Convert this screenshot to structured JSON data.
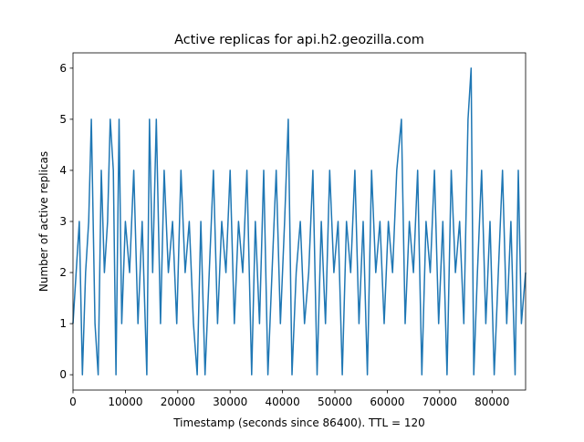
{
  "chart_data": {
    "type": "line",
    "title": "Active replicas for api.h2.geozilla.com",
    "xlabel": "Timestamp (seconds since 86400). TTL = 120",
    "ylabel": "Number of active replicas",
    "xlim": [
      0,
      86400
    ],
    "ylim": [
      -0.3,
      6.3
    ],
    "x_ticks": [
      0,
      10000,
      20000,
      30000,
      40000,
      50000,
      60000,
      70000,
      80000
    ],
    "y_ticks": [
      0,
      1,
      2,
      3,
      4,
      5,
      6
    ],
    "grid": false,
    "legend": "none",
    "series": [
      {
        "color": "#1f77b4",
        "x": [
          0,
          1200,
          1800,
          2400,
          3000,
          3500,
          4200,
          4800,
          5400,
          6000,
          6600,
          7100,
          7700,
          8200,
          8800,
          9300,
          10000,
          10800,
          11600,
          12400,
          13200,
          14100,
          14600,
          15200,
          15900,
          16700,
          17400,
          18200,
          19000,
          19800,
          20600,
          21400,
          22200,
          23000,
          23700,
          24400,
          25200,
          26000,
          26800,
          27600,
          28400,
          29200,
          30000,
          30800,
          31600,
          32400,
          33200,
          34100,
          34800,
          35600,
          36400,
          37200,
          38000,
          38800,
          39600,
          40400,
          41100,
          41800,
          42600,
          43400,
          44200,
          45000,
          45800,
          46600,
          47400,
          48200,
          49000,
          49800,
          50600,
          51400,
          52200,
          53000,
          53800,
          54600,
          55400,
          56200,
          57000,
          57800,
          58600,
          59400,
          60200,
          61000,
          61800,
          62700,
          63400,
          64200,
          65000,
          65800,
          66600,
          67400,
          68200,
          69000,
          69800,
          70600,
          71400,
          72200,
          73000,
          73800,
          74600,
          75400,
          76000,
          76500,
          77200,
          78000,
          78800,
          79600,
          80400,
          81200,
          82000,
          82800,
          83600,
          84400,
          85000,
          85600,
          86400
        ],
        "y": [
          1,
          3,
          0,
          2,
          3,
          5,
          1,
          0,
          4,
          2,
          3,
          5,
          4,
          0,
          5,
          1,
          3,
          2,
          4,
          1,
          3,
          0,
          5,
          2,
          5,
          1,
          4,
          2,
          3,
          1,
          4,
          2,
          3,
          1,
          0,
          3,
          0,
          2,
          4,
          1,
          3,
          2,
          4,
          1,
          3,
          2,
          4,
          0,
          3,
          1,
          4,
          0,
          2,
          4,
          1,
          3,
          5,
          0,
          2,
          3,
          1,
          2,
          4,
          0,
          3,
          1,
          4,
          2,
          3,
          0,
          3,
          2,
          4,
          1,
          3,
          0,
          4,
          2,
          3,
          1,
          3,
          2,
          4,
          5,
          1,
          3,
          2,
          4,
          0,
          3,
          2,
          4,
          1,
          3,
          0,
          4,
          2,
          3,
          1,
          5,
          6,
          0,
          2,
          4,
          1,
          3,
          0,
          2,
          4,
          1,
          3,
          0,
          4,
          1,
          2
        ]
      }
    ]
  }
}
